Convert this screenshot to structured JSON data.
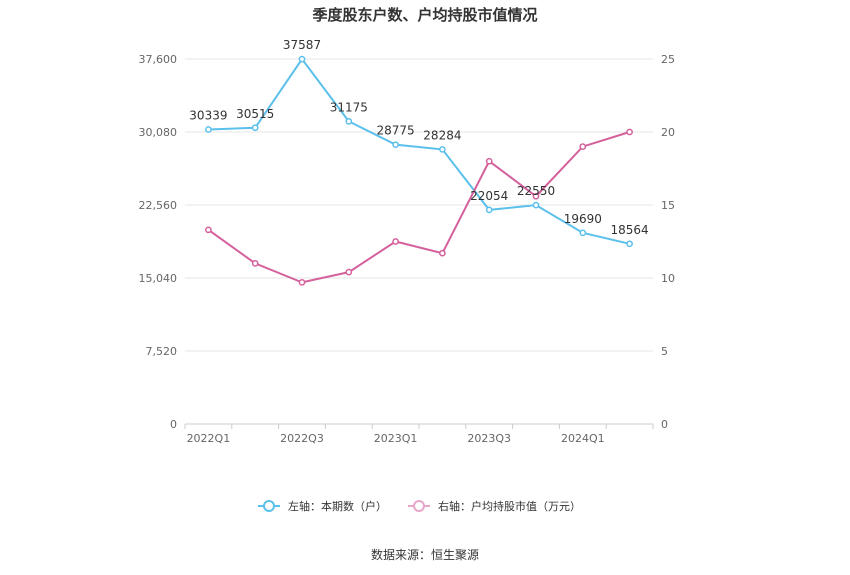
{
  "chart_data": {
    "type": "line",
    "title": "季度股东户数、户均持股市值情况",
    "x": [
      "2022Q1",
      "2022Q2",
      "2022Q3",
      "2022Q4",
      "2023Q1",
      "2023Q2",
      "2023Q3",
      "2023Q4",
      "2024Q1",
      "2024Q2"
    ],
    "x_tick_labels": [
      "2022Q1",
      "",
      "2022Q3",
      "",
      "2023Q1",
      "",
      "2023Q3",
      "",
      "2024Q1",
      ""
    ],
    "left_axis": {
      "ylim": [
        0,
        37600
      ],
      "ticks": [
        "0",
        "7,520",
        "15,040",
        "22,560",
        "30,080",
        "37,600"
      ]
    },
    "right_axis": {
      "ylim": [
        0,
        25
      ],
      "ticks": [
        "0",
        "5",
        "10",
        "15",
        "20",
        "25"
      ]
    },
    "series": [
      {
        "name": "左轴：本期数（户）",
        "axis": "left",
        "color": "#5bc0eb",
        "values": [
          30339,
          30515,
          37587,
          31175,
          28775,
          28284,
          22054,
          22550,
          19690,
          18564
        ],
        "labels": [
          "30339",
          "30515",
          "37587",
          "31175",
          "28775",
          "28284",
          "22054",
          "22550",
          "19690",
          "18564"
        ]
      },
      {
        "name": "右轴：户均持股市值（万元）",
        "axis": "right",
        "color": "#d4609c",
        "values": [
          13.3,
          11.0,
          9.7,
          10.4,
          12.5,
          11.7,
          18.0,
          15.6,
          19.0,
          20.0
        ]
      }
    ],
    "grid": true,
    "legend_position": "bottom",
    "legend": [
      "左轴：本期数（户）",
      "右轴：户均持股市值（万元）"
    ]
  },
  "source": "数据来源：恒生聚源"
}
